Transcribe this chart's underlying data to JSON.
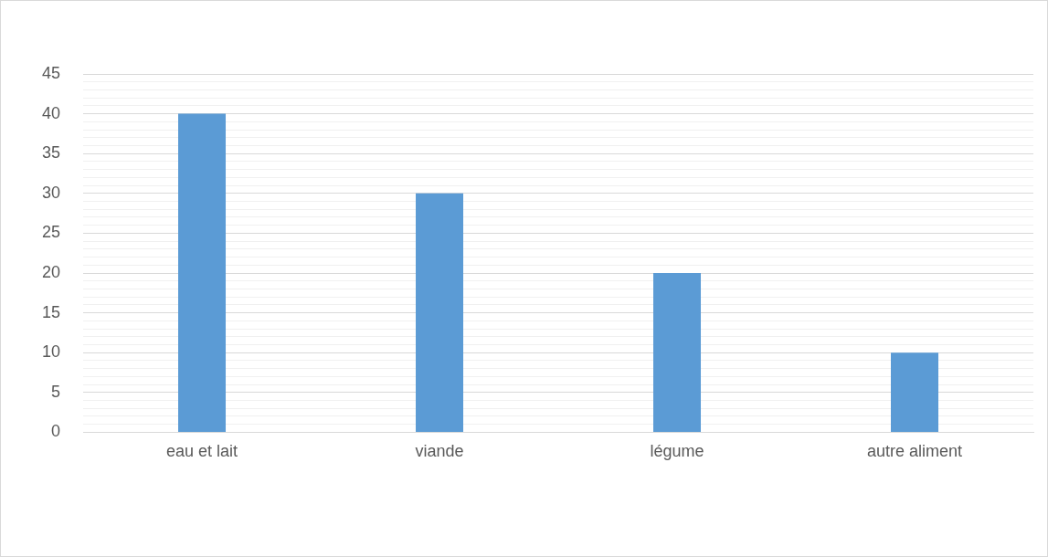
{
  "chart_data": {
    "type": "bar",
    "categories": [
      "eau et lait",
      "viande",
      "légume",
      "autre aliment"
    ],
    "values": [
      40,
      30,
      20,
      10
    ],
    "color": "#5b9bd5",
    "ylim": [
      0,
      45
    ],
    "yticks": [
      0,
      {
        "value": 1,
        "label": null
      },
      {
        "value": 2,
        "label": null
      },
      {
        "value": 3,
        "label": null
      },
      {
        "value": 4,
        "label": null
      },
      5,
      {
        "value": 6,
        "label": null
      },
      {
        "value": 7,
        "label": null
      },
      {
        "value": 8,
        "label": null
      },
      {
        "value": 9,
        "label": null
      },
      10,
      {
        "value": 11,
        "label": null
      },
      {
        "value": 12,
        "label": null
      },
      {
        "value": 13,
        "label": null
      },
      {
        "value": 14,
        "label": null
      },
      15,
      {
        "value": 16,
        "label": null
      },
      {
        "value": 17,
        "label": null
      },
      {
        "value": 18,
        "label": null
      },
      {
        "value": 19,
        "label": null
      },
      20,
      {
        "value": 21,
        "label": null
      },
      {
        "value": 22,
        "label": null
      },
      {
        "value": 23,
        "label": null
      },
      {
        "value": 24,
        "label": null
      },
      25,
      {
        "value": 26,
        "label": null
      },
      {
        "value": 27,
        "label": null
      },
      {
        "value": 28,
        "label": null
      },
      {
        "value": 29,
        "label": null
      },
      30,
      {
        "value": 31,
        "label": null
      },
      {
        "value": 32,
        "label": null
      },
      {
        "value": 33,
        "label": null
      },
      {
        "value": 34,
        "label": null
      },
      35,
      {
        "value": 36,
        "label": null
      },
      {
        "value": 37,
        "label": null
      },
      {
        "value": 38,
        "label": null
      },
      {
        "value": 39,
        "label": null
      },
      40,
      {
        "value": 41,
        "label": null
      },
      {
        "value": 42,
        "label": null
      },
      {
        "value": 43,
        "label": null
      },
      {
        "value": 44,
        "label": null
      },
      45
    ],
    "grid": true
  }
}
